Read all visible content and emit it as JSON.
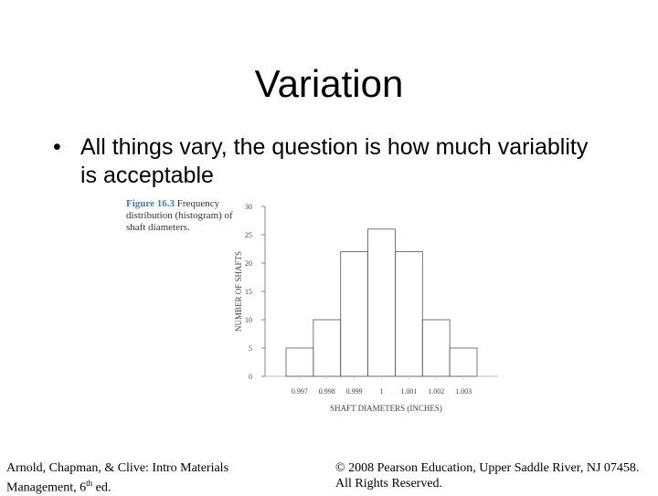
{
  "slide": {
    "title": "Variation",
    "bullet_symbol": "•",
    "bullet_text": "All things vary, the question is how much variablity is acceptable"
  },
  "figure": {
    "label": "Figure 16.3",
    "caption": "Frequency distribution (histogram) of shaft diameters."
  },
  "chart_data": {
    "type": "bar",
    "categories": [
      "0.997",
      "0.998",
      "0.999",
      "1",
      "1.001",
      "1.002",
      "1.003"
    ],
    "values": [
      5,
      10,
      22,
      26,
      22,
      10,
      5
    ],
    "title": "",
    "xlabel": "SHAFT DIAMETERS (INCHES)",
    "ylabel": "NUMBER OF SHAFTS",
    "ylim": [
      0,
      30
    ],
    "yticks": [
      0,
      5,
      10,
      15,
      20,
      25,
      30
    ],
    "grid": false,
    "bar_outline_color": "#555555"
  },
  "footer": {
    "left_line1": "Arnold, Chapman, & Clive: Intro Materials",
    "left_line2_prefix": "Management, 6",
    "left_line2_sup": "th",
    "left_line2_suffix": " ed.",
    "right_line1": "© 2008 Pearson Education, Upper Saddle River, NJ 07458.",
    "right_line2": "All Rights Reserved."
  }
}
